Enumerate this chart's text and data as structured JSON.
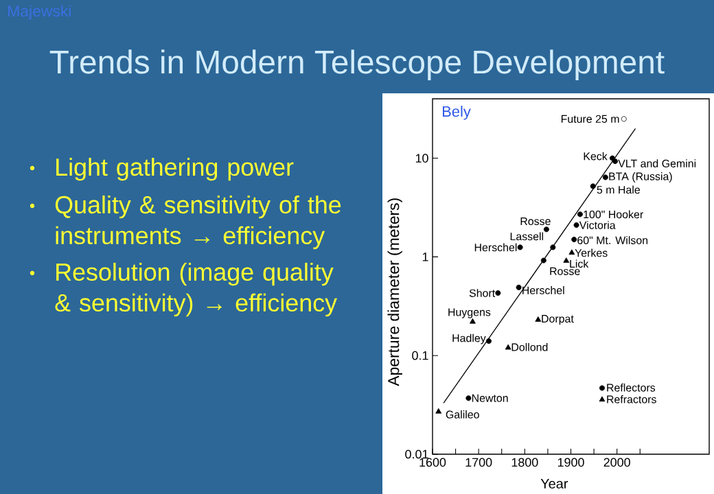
{
  "chart_data": {
    "type": "scatter",
    "title": "Trends in Modern Telescope Development",
    "xlabel": "Year",
    "ylabel": "Aperture diameter (meters)",
    "xlim": [
      1600,
      2200
    ],
    "ylim": [
      0.01,
      40
    ],
    "log": "y",
    "legend": "bottom right",
    "xticks": [
      1600,
      {
        "value": 1650,
        "label": null
      },
      1700,
      {
        "value": 1750,
        "label": null
      },
      1800,
      {
        "value": 1850,
        "label": null
      },
      1900,
      {
        "value": 1950,
        "label": null
      },
      2000,
      {
        "value": 2050,
        "label": null
      }
    ],
    "yticks": [
      0.01,
      0.1,
      1,
      10
    ],
    "series": [
      {
        "type": "line",
        "color": "#000000",
        "x": [
          1624,
          2040
        ],
        "values": [
          0.033,
          20
        ]
      },
      {
        "name": "Reflectors",
        "marker": "circle",
        "color": "#000000",
        "x": [
          1990,
          1996,
          1975,
          1948,
          1920,
          1912,
          1907,
          1847,
          1861,
          1790,
          1841,
          1787,
          1742,
          1722,
          1678
        ],
        "values": [
          10,
          9.3,
          6.4,
          5.2,
          2.7,
          2.1,
          1.5,
          1.9,
          1.25,
          1.25,
          0.92,
          0.49,
          0.43,
          0.14,
          0.037
        ]
      },
      {
        "name": "Refractors",
        "marker": "triangle",
        "color": "#000000",
        "x": [
          1613,
          1687,
          1764,
          1829,
          1890,
          1902
        ],
        "values": [
          0.027,
          0.22,
          0.12,
          0.23,
          0.91,
          1.1
        ]
      },
      {
        "marker": "circle",
        "color": "#ffffff",
        "x": [
          2015
        ],
        "values": [
          25
        ]
      }
    ],
    "annotations": [
      "Majewski",
      "Bely",
      "Light gathering power",
      "Quality & sensitivity of the instruments → efficiency",
      "Resolution (image quality & sensitivity) → efficiency",
      {
        "text": "Future 25 m",
        "x": 2015,
        "y": 25
      },
      {
        "text": "Keck",
        "x": 1990,
        "y": 10
      },
      {
        "text": "VLT and Gemini",
        "x": 1996,
        "y": 9.3
      },
      {
        "text": "BTA (Russia)",
        "x": 1975,
        "y": 6.4
      },
      {
        "text": "5 m Hale",
        "x": 1948,
        "y": 5.2
      },
      {
        "text": "100\" Hooker",
        "x": 1920,
        "y": 2.7
      },
      {
        "text": "Victoria",
        "x": 1912,
        "y": 2.1
      },
      {
        "text": "60\" Mt. Wilson",
        "x": 1907,
        "y": 1.5
      },
      {
        "text": "Rosse",
        "x": 1847,
        "y": 1.9
      },
      {
        "text": "Lassell",
        "x": 1861,
        "y": 1.25
      },
      {
        "text": "Herschel",
        "x": 1790,
        "y": 1.25
      },
      {
        "text": "Rosse",
        "x": 1841,
        "y": 0.92
      },
      {
        "text": "Herschel",
        "x": 1787,
        "y": 0.49
      },
      {
        "text": "Short",
        "x": 1742,
        "y": 0.43
      },
      {
        "text": "Hadley",
        "x": 1722,
        "y": 0.14
      },
      {
        "text": "Newton",
        "x": 1678,
        "y": 0.037
      },
      {
        "text": "Galileo",
        "x": 1613,
        "y": 0.027
      },
      {
        "text": "Huygens",
        "x": 1687,
        "y": 0.22
      },
      {
        "text": "Dollond",
        "x": 1764,
        "y": 0.12
      },
      {
        "text": "Dorpat",
        "x": 1829,
        "y": 0.23
      },
      {
        "text": "Lick",
        "x": 1890,
        "y": 0.91
      },
      {
        "text": "Yerkes",
        "x": 1902,
        "y": 1.1
      }
    ]
  }
}
